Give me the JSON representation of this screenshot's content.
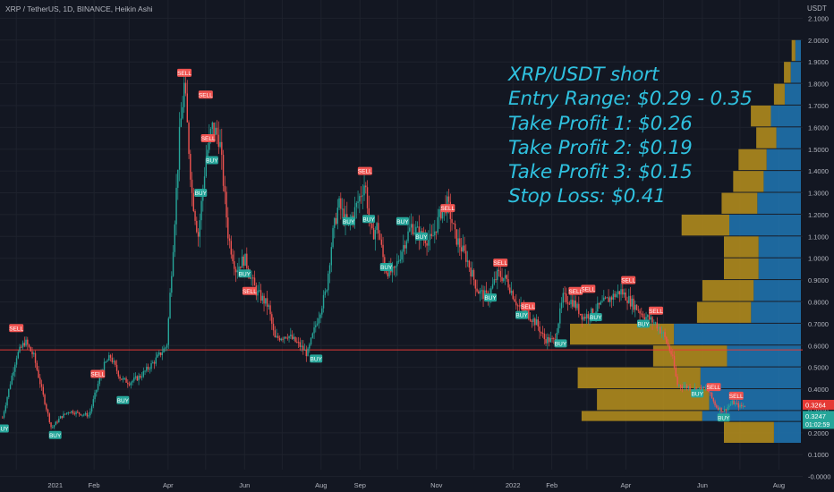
{
  "header": {
    "symbol_line": "XRP / TetherUS, 1D, BINANCE, Heikin Ashi",
    "currency_unit": "USDT"
  },
  "annotation": {
    "lines": [
      "XRP/USDT short",
      "Entry Range: $0.29 - 0.35",
      "Take Profit 1: $0.26",
      "Take Profit 2: $0.19",
      "Take Profit 3: $0.15",
      "Stop Loss: $0.41"
    ],
    "color": "#2fc1df"
  },
  "price_badges": [
    {
      "value": "0.3264",
      "color": "#e53935"
    },
    {
      "value": "0.3247",
      "sub": "01:02:59",
      "color": "#26a69a"
    }
  ],
  "colors": {
    "up": "#26a69a",
    "down": "#ef5350",
    "support_line": "#e53935",
    "volume_up": "#2077b4",
    "volume_down": "#b8901c",
    "sell_label": "#ef5350",
    "buy_label": "#26a69a"
  },
  "chart_data": {
    "type": "candlestick",
    "title": "XRP / TetherUS, 1D, BINANCE, Heikin Ashi",
    "y_axis": {
      "unit": "USDT",
      "range": [
        -0.05,
        2.1
      ],
      "ticks": [
        "2.1000",
        "2.0000",
        "1.9000",
        "1.8000",
        "1.7000",
        "1.6000",
        "1.5000",
        "1.4000",
        "1.3000",
        "1.2000",
        "1.1000",
        "1.0000",
        "0.9000",
        "0.8000",
        "0.7000",
        "0.6000",
        "0.5000",
        "0.4000",
        "0.3000",
        "0.2000",
        "0.1000",
        "-0.0000"
      ]
    },
    "x_axis": {
      "labels": [
        "2021",
        "Feb",
        "Apr",
        "Jun",
        "Aug",
        "Sep",
        "Nov",
        "2022",
        "Feb",
        "Apr",
        "Jun",
        "Aug"
      ]
    },
    "grid": true,
    "price_path": [
      {
        "t": "2020-11-20",
        "p": 0.27
      },
      {
        "t": "2020-12-01",
        "p": 0.55
      },
      {
        "t": "2020-12-08",
        "p": 0.62
      },
      {
        "t": "2020-12-15",
        "p": 0.55
      },
      {
        "t": "2020-12-22",
        "p": 0.38
      },
      {
        "t": "2020-12-29",
        "p": 0.22
      },
      {
        "t": "2021-01-05",
        "p": 0.27
      },
      {
        "t": "2021-01-12",
        "p": 0.3
      },
      {
        "t": "2021-01-19",
        "p": 0.29
      },
      {
        "t": "2021-01-28",
        "p": 0.28
      },
      {
        "t": "2021-02-03",
        "p": 0.4
      },
      {
        "t": "2021-02-08",
        "p": 0.5
      },
      {
        "t": "2021-02-14",
        "p": 0.55
      },
      {
        "t": "2021-02-22",
        "p": 0.45
      },
      {
        "t": "2021-03-01",
        "p": 0.43
      },
      {
        "t": "2021-03-10",
        "p": 0.46
      },
      {
        "t": "2021-03-20",
        "p": 0.52
      },
      {
        "t": "2021-03-31",
        "p": 0.6
      },
      {
        "t": "2021-04-05",
        "p": 1.05
      },
      {
        "t": "2021-04-10",
        "p": 1.55
      },
      {
        "t": "2021-04-14",
        "p": 1.8
      },
      {
        "t": "2021-04-20",
        "p": 1.3
      },
      {
        "t": "2021-04-25",
        "p": 1.1
      },
      {
        "t": "2021-05-01",
        "p": 1.45
      },
      {
        "t": "2021-05-06",
        "p": 1.6
      },
      {
        "t": "2021-05-12",
        "p": 1.55
      },
      {
        "t": "2021-05-19",
        "p": 1.1
      },
      {
        "t": "2021-05-25",
        "p": 0.95
      },
      {
        "t": "2021-06-01",
        "p": 1.0
      },
      {
        "t": "2021-06-10",
        "p": 0.85
      },
      {
        "t": "2021-06-20",
        "p": 0.78
      },
      {
        "t": "2021-06-25",
        "p": 0.63
      },
      {
        "t": "2021-07-05",
        "p": 0.65
      },
      {
        "t": "2021-07-15",
        "p": 0.6
      },
      {
        "t": "2021-07-21",
        "p": 0.56
      },
      {
        "t": "2021-07-28",
        "p": 0.7
      },
      {
        "t": "2021-08-05",
        "p": 0.85
      },
      {
        "t": "2021-08-10",
        "p": 1.1
      },
      {
        "t": "2021-08-15",
        "p": 1.25
      },
      {
        "t": "2021-08-22",
        "p": 1.15
      },
      {
        "t": "2021-08-28",
        "p": 1.22
      },
      {
        "t": "2021-09-05",
        "p": 1.35
      },
      {
        "t": "2021-09-10",
        "p": 1.1
      },
      {
        "t": "2021-09-15",
        "p": 1.15
      },
      {
        "t": "2021-09-21",
        "p": 0.95
      },
      {
        "t": "2021-09-28",
        "p": 0.93
      },
      {
        "t": "2021-10-05",
        "p": 1.05
      },
      {
        "t": "2021-10-12",
        "p": 1.15
      },
      {
        "t": "2021-10-20",
        "p": 1.1
      },
      {
        "t": "2021-10-28",
        "p": 1.08
      },
      {
        "t": "2021-11-05",
        "p": 1.22
      },
      {
        "t": "2021-11-10",
        "p": 1.25
      },
      {
        "t": "2021-11-16",
        "p": 1.1
      },
      {
        "t": "2021-11-25",
        "p": 1.0
      },
      {
        "t": "2021-12-04",
        "p": 0.85
      },
      {
        "t": "2021-12-12",
        "p": 0.82
      },
      {
        "t": "2021-12-20",
        "p": 0.93
      },
      {
        "t": "2021-12-27",
        "p": 0.9
      },
      {
        "t": "2022-01-05",
        "p": 0.78
      },
      {
        "t": "2022-01-12",
        "p": 0.75
      },
      {
        "t": "2022-01-20",
        "p": 0.7
      },
      {
        "t": "2022-01-26",
        "p": 0.63
      },
      {
        "t": "2022-02-03",
        "p": 0.62
      },
      {
        "t": "2022-02-10",
        "p": 0.82
      },
      {
        "t": "2022-02-18",
        "p": 0.8
      },
      {
        "t": "2022-02-26",
        "p": 0.73
      },
      {
        "t": "2022-03-05",
        "p": 0.75
      },
      {
        "t": "2022-03-15",
        "p": 0.8
      },
      {
        "t": "2022-03-28",
        "p": 0.85
      },
      {
        "t": "2022-04-05",
        "p": 0.8
      },
      {
        "t": "2022-04-15",
        "p": 0.74
      },
      {
        "t": "2022-04-25",
        "p": 0.7
      },
      {
        "t": "2022-05-01",
        "p": 0.65
      },
      {
        "t": "2022-05-08",
        "p": 0.55
      },
      {
        "t": "2022-05-12",
        "p": 0.42
      },
      {
        "t": "2022-05-20",
        "p": 0.41
      },
      {
        "t": "2022-05-28",
        "p": 0.4
      },
      {
        "t": "2022-06-05",
        "p": 0.4
      },
      {
        "t": "2022-06-12",
        "p": 0.32
      },
      {
        "t": "2022-06-18",
        "p": 0.3
      },
      {
        "t": "2022-06-25",
        "p": 0.34
      },
      {
        "t": "2022-07-01",
        "p": 0.32
      },
      {
        "t": "2022-07-05",
        "p": 0.3247
      }
    ],
    "horizontal_lines": [
      {
        "price": 0.58,
        "color": "#e53935"
      }
    ],
    "signals": [
      {
        "t": "2020-11-20",
        "p": 0.22,
        "type": "BUY"
      },
      {
        "t": "2020-12-01",
        "p": 0.68,
        "type": "SELL"
      },
      {
        "t": "2021-01-01",
        "p": 0.19,
        "type": "BUY"
      },
      {
        "t": "2021-02-04",
        "p": 0.47,
        "type": "SELL"
      },
      {
        "t": "2021-02-24",
        "p": 0.35,
        "type": "BUY"
      },
      {
        "t": "2021-04-14",
        "p": 1.85,
        "type": "SELL"
      },
      {
        "t": "2021-04-27",
        "p": 1.3,
        "type": "BUY"
      },
      {
        "t": "2021-05-01",
        "p": 1.75,
        "type": "SELL"
      },
      {
        "t": "2021-05-03",
        "p": 1.55,
        "type": "SELL"
      },
      {
        "t": "2021-05-06",
        "p": 1.45,
        "type": "BUY"
      },
      {
        "t": "2021-06-01",
        "p": 0.93,
        "type": "BUY"
      },
      {
        "t": "2021-06-05",
        "p": 0.85,
        "type": "SELL"
      },
      {
        "t": "2021-07-28",
        "p": 0.54,
        "type": "BUY"
      },
      {
        "t": "2021-08-23",
        "p": 1.17,
        "type": "BUY"
      },
      {
        "t": "2021-09-05",
        "p": 1.4,
        "type": "SELL"
      },
      {
        "t": "2021-09-08",
        "p": 1.18,
        "type": "BUY"
      },
      {
        "t": "2021-09-22",
        "p": 0.96,
        "type": "BUY"
      },
      {
        "t": "2021-10-05",
        "p": 1.17,
        "type": "BUY"
      },
      {
        "t": "2021-10-20",
        "p": 1.1,
        "type": "BUY"
      },
      {
        "t": "2021-11-10",
        "p": 1.23,
        "type": "SELL"
      },
      {
        "t": "2021-12-14",
        "p": 0.82,
        "type": "BUY"
      },
      {
        "t": "2021-12-22",
        "p": 0.98,
        "type": "SELL"
      },
      {
        "t": "2022-01-08",
        "p": 0.74,
        "type": "BUY"
      },
      {
        "t": "2022-01-13",
        "p": 0.78,
        "type": "SELL"
      },
      {
        "t": "2022-02-08",
        "p": 0.61,
        "type": "BUY"
      },
      {
        "t": "2022-02-20",
        "p": 0.85,
        "type": "SELL"
      },
      {
        "t": "2022-03-02",
        "p": 0.86,
        "type": "SELL"
      },
      {
        "t": "2022-03-08",
        "p": 0.73,
        "type": "BUY"
      },
      {
        "t": "2022-04-03",
        "p": 0.9,
        "type": "SELL"
      },
      {
        "t": "2022-04-15",
        "p": 0.7,
        "type": "BUY"
      },
      {
        "t": "2022-04-25",
        "p": 0.76,
        "type": "SELL"
      },
      {
        "t": "2022-05-28",
        "p": 0.38,
        "type": "BUY"
      },
      {
        "t": "2022-06-10",
        "p": 0.41,
        "type": "SELL"
      },
      {
        "t": "2022-06-18",
        "p": 0.27,
        "type": "BUY"
      },
      {
        "t": "2022-06-28",
        "p": 0.37,
        "type": "SELL"
      }
    ],
    "volume_profile": [
      {
        "price_low": 0.15,
        "price_high": 0.25,
        "volume": 100,
        "up_share": 0.35
      },
      {
        "price_low": 0.25,
        "price_high": 0.3,
        "volume": 285,
        "up_share": 0.45
      },
      {
        "price_low": 0.3,
        "price_high": 0.4,
        "volume": 265,
        "up_share": 0.45
      },
      {
        "price_low": 0.4,
        "price_high": 0.5,
        "volume": 290,
        "up_share": 0.45
      },
      {
        "price_low": 0.5,
        "price_high": 0.6,
        "volume": 192,
        "up_share": 0.5
      },
      {
        "price_low": 0.6,
        "price_high": 0.7,
        "volume": 300,
        "up_share": 0.55
      },
      {
        "price_low": 0.7,
        "price_high": 0.8,
        "volume": 135,
        "up_share": 0.48
      },
      {
        "price_low": 0.8,
        "price_high": 0.9,
        "volume": 128,
        "up_share": 0.48
      },
      {
        "price_low": 0.9,
        "price_high": 1.0,
        "volume": 100,
        "up_share": 0.55
      },
      {
        "price_low": 1.0,
        "price_high": 1.1,
        "volume": 100,
        "up_share": 0.55
      },
      {
        "price_low": 1.1,
        "price_high": 1.2,
        "volume": 155,
        "up_share": 0.6
      },
      {
        "price_low": 1.2,
        "price_high": 1.3,
        "volume": 103,
        "up_share": 0.55
      },
      {
        "price_low": 1.3,
        "price_high": 1.4,
        "volume": 88,
        "up_share": 0.55
      },
      {
        "price_low": 1.4,
        "price_high": 1.5,
        "volume": 81,
        "up_share": 0.55
      },
      {
        "price_low": 1.5,
        "price_high": 1.6,
        "volume": 58,
        "up_share": 0.55
      },
      {
        "price_low": 1.6,
        "price_high": 1.7,
        "volume": 65,
        "up_share": 0.6
      },
      {
        "price_low": 1.7,
        "price_high": 1.8,
        "volume": 35,
        "up_share": 0.6
      },
      {
        "price_low": 1.8,
        "price_high": 1.9,
        "volume": 22,
        "up_share": 0.6
      },
      {
        "price_low": 1.9,
        "price_high": 2.0,
        "volume": 12,
        "up_share": 0.6
      }
    ]
  }
}
